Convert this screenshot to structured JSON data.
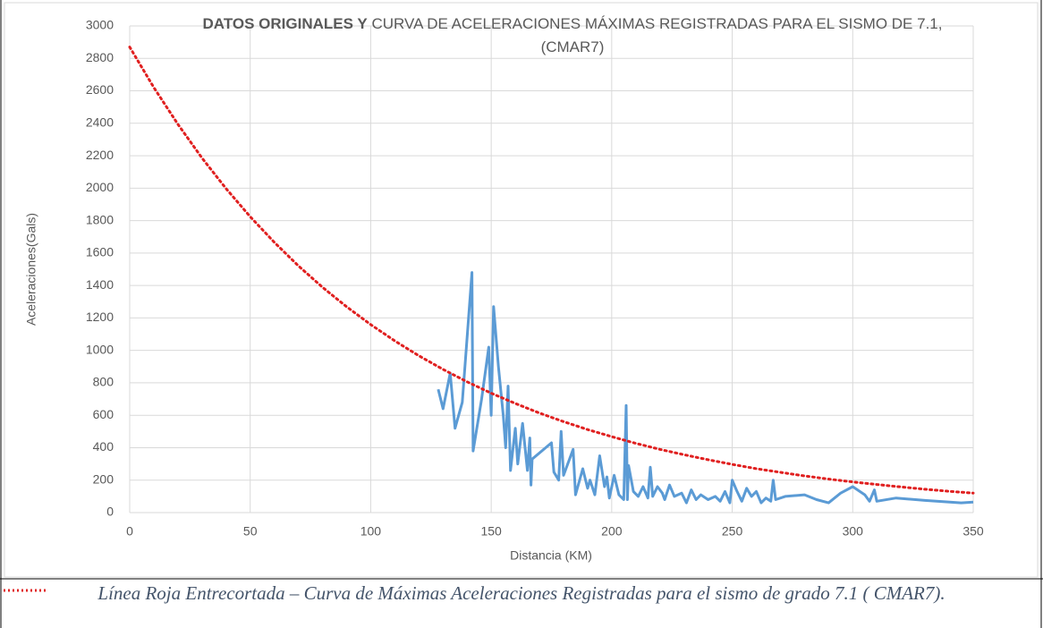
{
  "chart_data": {
    "type": "line",
    "title_bold": "DATOS ORIGINALES Y",
    "title": "CURVA DE ACELERACIONES MÁXIMAS REGISTRADAS PARA EL SISMO DE 7.1, (CMAR7)",
    "x_label": "Distancia (KM)",
    "y_label": "Aceleraciones(Gals)",
    "xlim": [
      0,
      350
    ],
    "xticks": [
      0,
      50,
      100,
      150,
      200,
      250,
      300,
      350
    ],
    "ylim": [
      0,
      3000
    ],
    "yticks": [
      0,
      200,
      400,
      600,
      800,
      1000,
      1200,
      1400,
      1600,
      1800,
      2000,
      2200,
      2400,
      2600,
      2800,
      3000
    ],
    "grid": true,
    "series": [
      {
        "color": "#5b9bd5",
        "style": "solid",
        "x": [
          128,
          130,
          133,
          135,
          138,
          142,
          142.5,
          146,
          149,
          150,
          151,
          153,
          155,
          156,
          157,
          158,
          160,
          161,
          163,
          165,
          166,
          166.5,
          167,
          175,
          176,
          178,
          179,
          180,
          184,
          185,
          188,
          190,
          191,
          193,
          195,
          197,
          198,
          199,
          201,
          203,
          205,
          206,
          206.5,
          207,
          209,
          211,
          213,
          215,
          216,
          217,
          219,
          221,
          222,
          224,
          226,
          229,
          231,
          233,
          235,
          237,
          240,
          243,
          245,
          247,
          249,
          250,
          252,
          254,
          256,
          258,
          260,
          262,
          264,
          266,
          267,
          268,
          272,
          280,
          285,
          290,
          295,
          300,
          305,
          307,
          309,
          310,
          318,
          330,
          345,
          350
        ],
        "values": [
          760,
          640,
          860,
          520,
          680,
          1480,
          380,
          700,
          1020,
          600,
          1270,
          900,
          600,
          400,
          780,
          260,
          520,
          300,
          550,
          260,
          460,
          170,
          330,
          430,
          250,
          200,
          500,
          230,
          390,
          110,
          270,
          150,
          200,
          110,
          350,
          160,
          220,
          90,
          230,
          110,
          80,
          660,
          80,
          290,
          130,
          100,
          160,
          90,
          280,
          100,
          160,
          120,
          80,
          170,
          100,
          120,
          60,
          140,
          80,
          110,
          80,
          100,
          70,
          130,
          60,
          200,
          130,
          70,
          150,
          100,
          130,
          60,
          90,
          70,
          200,
          80,
          100,
          110,
          80,
          60,
          120,
          160,
          110,
          70,
          140,
          70,
          90,
          75,
          60,
          65
        ]
      },
      {
        "color": "#e02020",
        "style": "dotted",
        "x": [
          0,
          10,
          20,
          30,
          40,
          50,
          60,
          70,
          80,
          90,
          100,
          110,
          120,
          130,
          140,
          150,
          160,
          170,
          180,
          190,
          200,
          210,
          220,
          230,
          240,
          250,
          260,
          270,
          280,
          290,
          300,
          310,
          320,
          330,
          340,
          350
        ],
        "values": [
          2870,
          2621,
          2394,
          2186,
          1997,
          1824,
          1666,
          1521,
          1389,
          1269,
          1159,
          1058,
          967,
          883,
          806,
          736,
          673,
          614,
          561,
          512,
          468,
          427,
          390,
          357,
          326,
          297,
          271,
          248,
          226,
          207,
          189,
          173,
          158,
          144,
          131,
          120
        ]
      }
    ]
  },
  "caption": "Línea Roja Entrecortada – Curva de Máximas Aceleraciones Registradas para el sismo de grado 7.1 ( CMAR7)."
}
